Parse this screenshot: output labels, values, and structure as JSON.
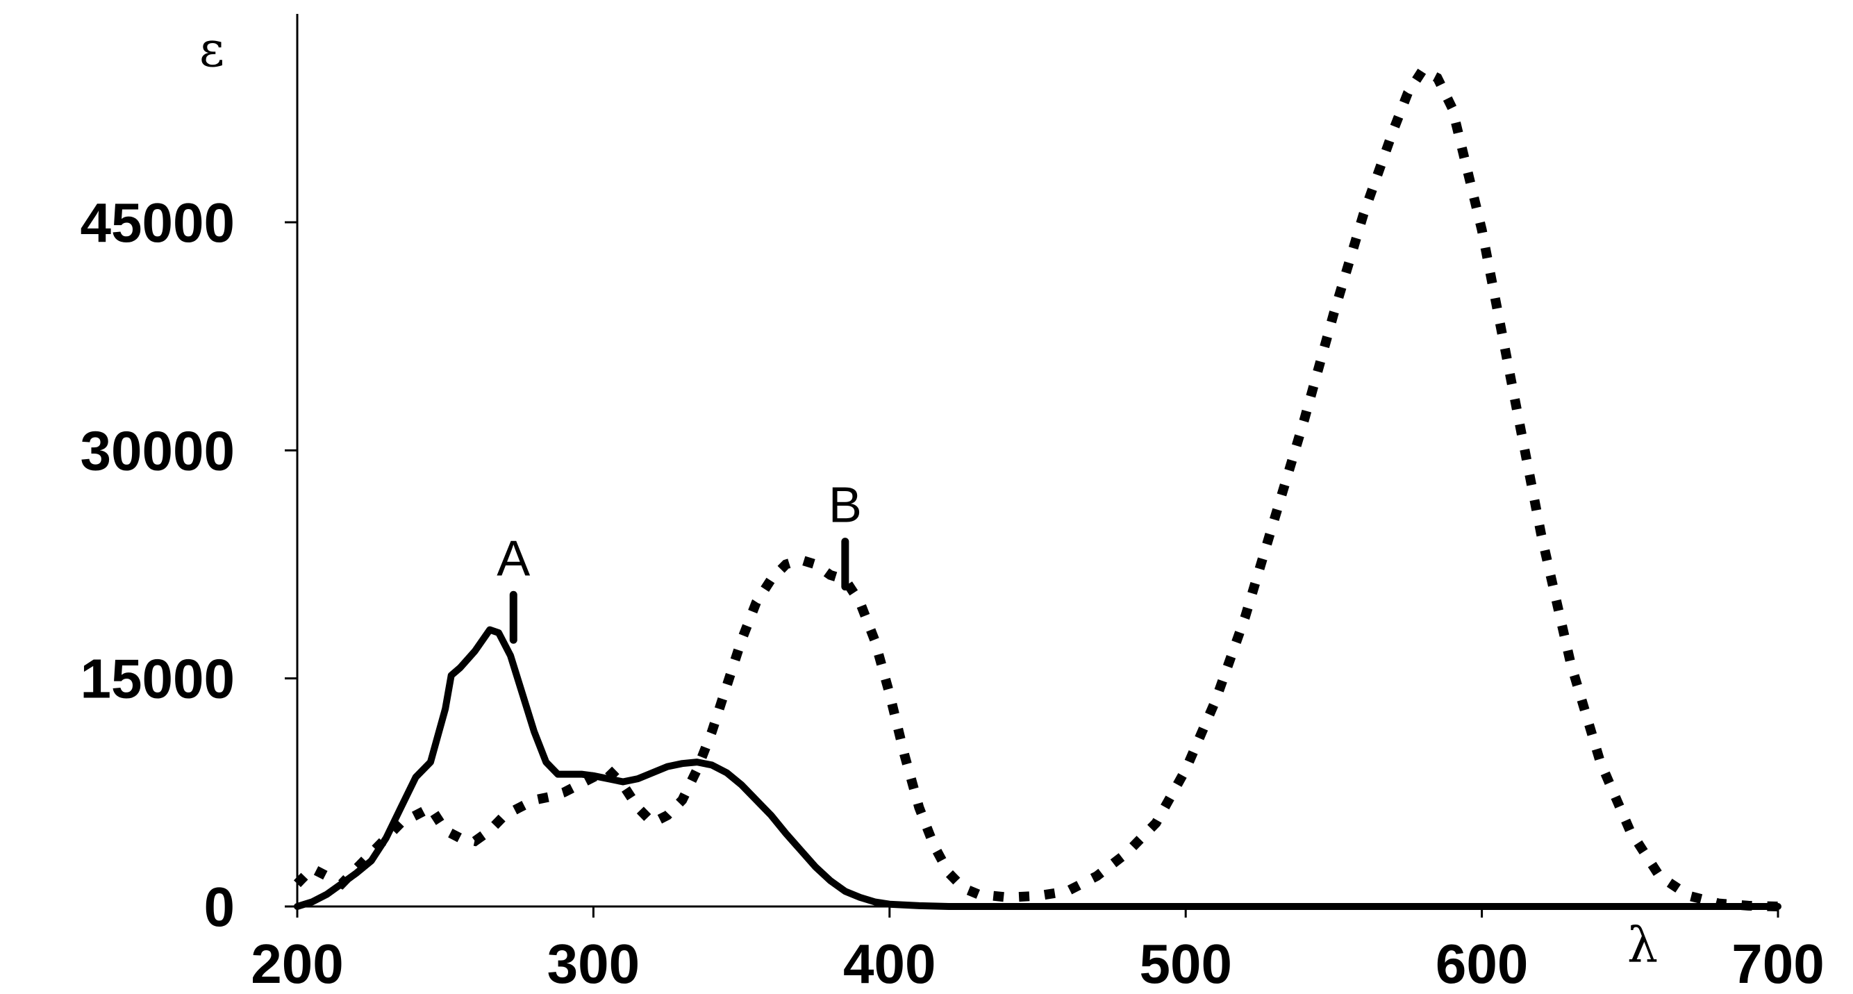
{
  "chart_data": {
    "type": "line",
    "xlabel": "λ",
    "ylabel": "ε",
    "xlim": [
      200,
      700
    ],
    "ylim": [
      0,
      59000
    ],
    "xticks": [
      200,
      300,
      400,
      500,
      600,
      700
    ],
    "yticks": [
      0,
      15000,
      30000,
      45000
    ],
    "grid": false,
    "legend": "none",
    "series": [
      {
        "style": "solid",
        "x": [
          200,
          205,
          210,
          215,
          220,
          225,
          230,
          235,
          240,
          245,
          250,
          252,
          255,
          260,
          265,
          268,
          272,
          276,
          280,
          284,
          288,
          292,
          296,
          300,
          305,
          310,
          315,
          320,
          325,
          330,
          335,
          340,
          345,
          350,
          355,
          360,
          365,
          370,
          375,
          380,
          385,
          390,
          395,
          400,
          410,
          420,
          430,
          450,
          500,
          600,
          700
        ],
        "y": [
          0,
          300,
          800,
          1500,
          2200,
          3000,
          4500,
          6500,
          8500,
          9500,
          13000,
          15200,
          15700,
          16800,
          18200,
          18000,
          16500,
          14000,
          11500,
          9500,
          8700,
          8700,
          8700,
          8600,
          8400,
          8200,
          8400,
          8800,
          9200,
          9400,
          9500,
          9300,
          8800,
          8000,
          7000,
          6000,
          4800,
          3700,
          2600,
          1700,
          1000,
          600,
          300,
          150,
          50,
          0,
          0,
          0,
          0,
          0,
          0
        ]
      },
      {
        "style": "dotted",
        "x": [
          200,
          205,
          210,
          215,
          220,
          225,
          230,
          235,
          240,
          245,
          250,
          255,
          260,
          265,
          270,
          275,
          280,
          285,
          290,
          295,
          300,
          305,
          310,
          315,
          320,
          325,
          330,
          335,
          340,
          345,
          350,
          355,
          360,
          365,
          370,
          375,
          380,
          385,
          390,
          395,
          400,
          405,
          410,
          415,
          420,
          425,
          430,
          440,
          450,
          460,
          470,
          480,
          490,
          500,
          510,
          520,
          530,
          540,
          550,
          560,
          570,
          575,
          580,
          585,
          590,
          600,
          610,
          620,
          630,
          640,
          650,
          660,
          670,
          680,
          690,
          700
        ],
        "y": [
          1500,
          2500,
          2000,
          1500,
          2500,
          3500,
          4500,
          5500,
          6000,
          6500,
          5000,
          4500,
          4300,
          5000,
          6000,
          6500,
          7000,
          7200,
          7500,
          8000,
          8500,
          9000,
          8000,
          6500,
          5500,
          6000,
          7000,
          9000,
          11500,
          14500,
          17500,
          20000,
          21500,
          22500,
          22800,
          22500,
          21800,
          21500,
          20000,
          17500,
          14000,
          10000,
          6500,
          4000,
          2200,
          1200,
          800,
          600,
          700,
          1000,
          2000,
          3500,
          5500,
          9000,
          13500,
          19000,
          25500,
          32000,
          39000,
          45500,
          51000,
          53500,
          55000,
          54500,
          52500,
          44500,
          34500,
          24500,
          16000,
          9500,
          5000,
          2000,
          700,
          200,
          50,
          0
        ]
      }
    ],
    "annotations": [
      {
        "text": "A",
        "x": 273,
        "y": 20500
      },
      {
        "text": "B",
        "x": 385,
        "y": 24000
      }
    ]
  }
}
